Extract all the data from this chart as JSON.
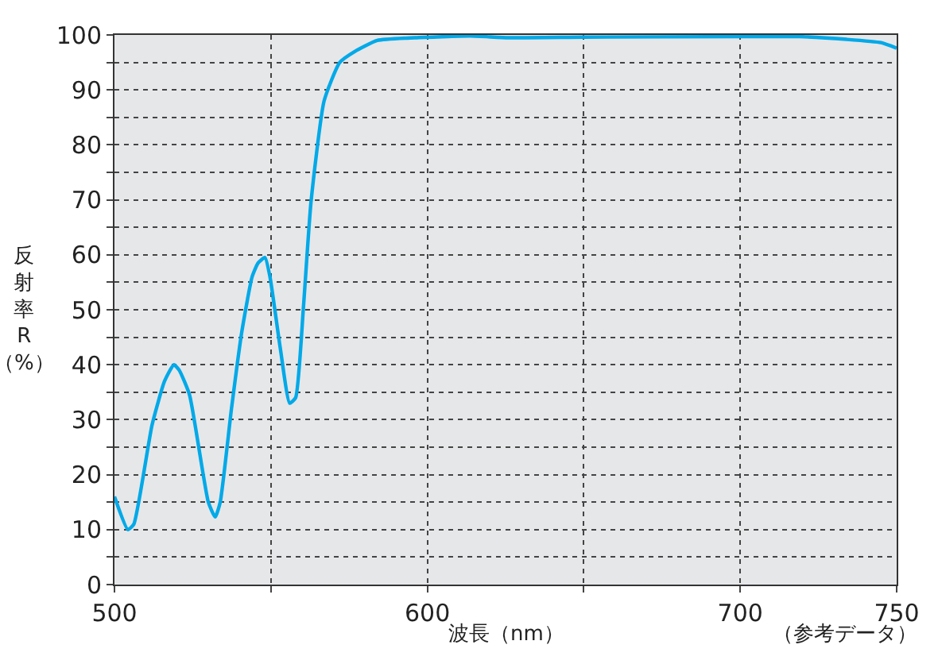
{
  "chart_data": {
    "type": "line",
    "xlabel": "波長（nm）",
    "ylabel": "反射率R（%）",
    "annotations": [
      "（参考データ）"
    ],
    "x": [
      500,
      504.3,
      506.2,
      512,
      516,
      519,
      520.7,
      524,
      530,
      532.2,
      533.8,
      537.4,
      540.7,
      544,
      545.9,
      548.1,
      549.7,
      553,
      556,
      557.9,
      560.4,
      562.8,
      567,
      572,
      576.8,
      584,
      596,
      613.7,
      626,
      650,
      700,
      719,
      734,
      745,
      750
    ],
    "series": [
      {
        "color": "#00a9e8",
        "values": [
          16,
          10,
          11,
          29,
          37,
          40,
          39,
          34.5,
          15,
          12.3,
          15,
          32,
          46,
          56,
          58.5,
          59.5,
          56,
          43,
          33,
          34,
          50.5,
          69.5,
          88,
          95,
          97,
          99,
          99.5,
          99.8,
          99.5,
          99.6,
          99.7,
          99.7,
          99.2,
          98.6,
          97.6
        ]
      }
    ],
    "xlim": [
      500,
      750
    ],
    "ylim": [
      0,
      100
    ],
    "xticks": [
      500,
      {
        "value": 550,
        "label": null
      },
      600,
      {
        "value": 650,
        "label": null
      },
      700,
      750
    ],
    "yticks": [
      0,
      {
        "value": 5,
        "label": null
      },
      10,
      {
        "value": 15,
        "label": null
      },
      20,
      {
        "value": 25,
        "label": null
      },
      30,
      {
        "value": 35,
        "label": null
      },
      40,
      {
        "value": 45,
        "label": null
      },
      50,
      {
        "value": 55,
        "label": null
      },
      60,
      {
        "value": 65,
        "label": null
      },
      70,
      {
        "value": 75,
        "label": null
      },
      80,
      {
        "value": 85,
        "label": null
      },
      90,
      {
        "value": 95,
        "label": null
      },
      100
    ],
    "grid": true,
    "line_style": "solid",
    "marker": "none"
  }
}
